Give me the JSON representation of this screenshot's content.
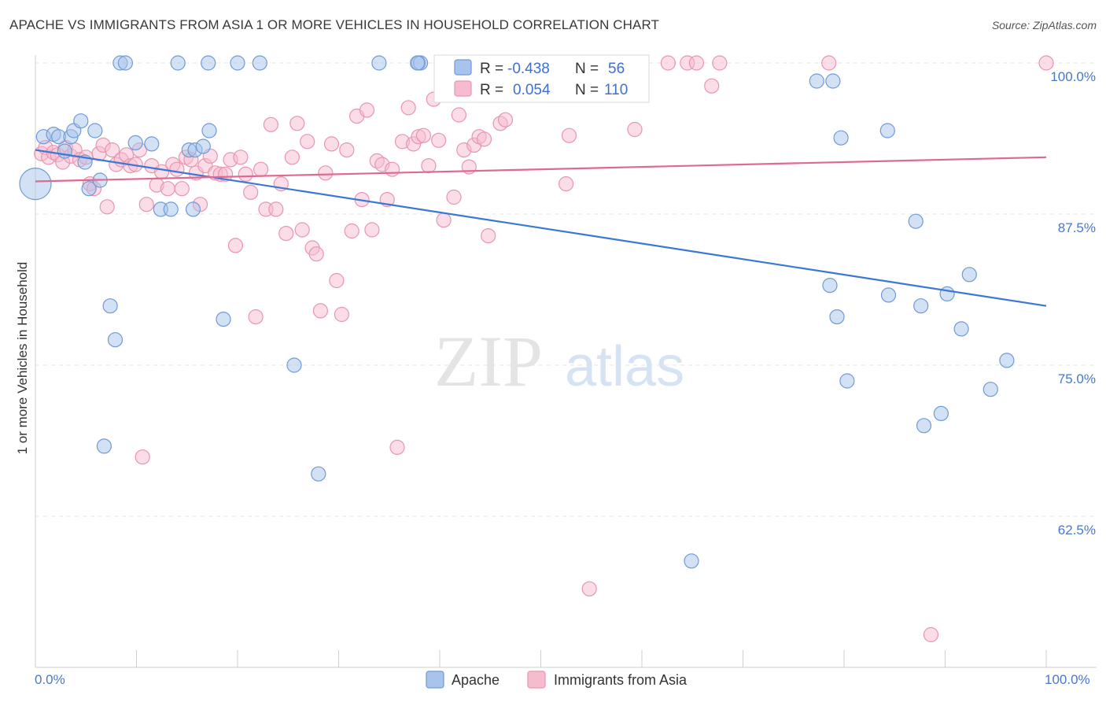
{
  "title": "APACHE VS IMMIGRANTS FROM ASIA 1 OR MORE VEHICLES IN HOUSEHOLD CORRELATION CHART",
  "source": "Source: ZipAtlas.com",
  "watermark": {
    "zip": "ZIP",
    "atlas": "atlas"
  },
  "legend": {
    "r_label": "R =",
    "n_label": "N =",
    "apache": {
      "r": "-0.438",
      "n": "56"
    },
    "asia": {
      "r": "0.054",
      "n": "110"
    }
  },
  "colors": {
    "apache_fill": "#a8c4ec",
    "apache_stroke": "#6f9ad8",
    "apache_line": "#3a78d4",
    "asia_fill": "#f6bccd",
    "asia_stroke": "#e895b0",
    "asia_line": "#e06994",
    "tick_text": "#4a78c8"
  },
  "chart_data": {
    "type": "scatter",
    "ylabel": "1 or more Vehicles in Household",
    "x_tick_labels": [
      "0.0%",
      "100.0%"
    ],
    "y_tick_labels": [
      "100.0%",
      "87.5%",
      "75.0%",
      "62.5%"
    ],
    "y_ticks": [
      100.0,
      87.5,
      75.0,
      62.5
    ],
    "xlim": [
      0,
      100
    ],
    "ylim": [
      50.0,
      101.2
    ],
    "grid": true,
    "series": [
      {
        "name": "Apache",
        "trend": [
          [
            0,
            92.8
          ],
          [
            100,
            79.9
          ]
        ],
        "points": [
          [
            0.0,
            90.0
          ],
          [
            0.8,
            93.9
          ],
          [
            1.8,
            94.1
          ],
          [
            2.3,
            93.9
          ],
          [
            3.5,
            93.9
          ],
          [
            2.9,
            92.7
          ],
          [
            3.8,
            94.4
          ],
          [
            4.5,
            95.2
          ],
          [
            4.9,
            91.8
          ],
          [
            5.3,
            89.6
          ],
          [
            5.9,
            94.4
          ],
          [
            6.4,
            90.3
          ],
          [
            7.4,
            79.9
          ],
          [
            7.9,
            77.1
          ],
          [
            6.8,
            68.3
          ],
          [
            8.4,
            100.0
          ],
          [
            8.9,
            100.0
          ],
          [
            9.9,
            93.4
          ],
          [
            11.5,
            93.3
          ],
          [
            12.4,
            87.9
          ],
          [
            13.4,
            87.9
          ],
          [
            14.1,
            100.0
          ],
          [
            15.2,
            92.8
          ],
          [
            15.6,
            87.9
          ],
          [
            15.8,
            92.8
          ],
          [
            16.6,
            93.1
          ],
          [
            17.2,
            94.4
          ],
          [
            17.1,
            100.0
          ],
          [
            18.6,
            78.8
          ],
          [
            20.0,
            100.0
          ],
          [
            22.2,
            100.0
          ],
          [
            25.6,
            75.0
          ],
          [
            28.0,
            66.0
          ],
          [
            34.0,
            100.0
          ],
          [
            37.9,
            100.0
          ],
          [
            38.1,
            100.0
          ],
          [
            37.8,
            100.0
          ],
          [
            42.5,
            100.0
          ],
          [
            64.9,
            58.8
          ],
          [
            77.3,
            98.5
          ],
          [
            78.6,
            81.6
          ],
          [
            78.9,
            98.5
          ],
          [
            79.3,
            79.0
          ],
          [
            79.7,
            93.8
          ],
          [
            80.3,
            73.7
          ],
          [
            84.3,
            94.4
          ],
          [
            84.4,
            80.8
          ],
          [
            87.1,
            86.9
          ],
          [
            87.6,
            79.9
          ],
          [
            87.9,
            70.0
          ],
          [
            89.6,
            71.0
          ],
          [
            90.2,
            80.9
          ],
          [
            91.6,
            78.0
          ],
          [
            92.4,
            82.5
          ],
          [
            94.5,
            73.0
          ],
          [
            96.1,
            75.4
          ]
        ]
      },
      {
        "name": "Immigrants from Asia",
        "trend": [
          [
            0,
            90.2
          ],
          [
            100,
            92.2
          ]
        ],
        "points": [
          [
            0.6,
            92.5
          ],
          [
            1.0,
            93.0
          ],
          [
            1.3,
            92.2
          ],
          [
            1.8,
            92.6
          ],
          [
            2.2,
            92.4
          ],
          [
            2.7,
            91.8
          ],
          [
            3.0,
            93.0
          ],
          [
            3.5,
            92.3
          ],
          [
            3.9,
            92.8
          ],
          [
            4.4,
            92.0
          ],
          [
            5.0,
            92.2
          ],
          [
            5.4,
            90.0
          ],
          [
            5.8,
            89.6
          ],
          [
            6.3,
            92.5
          ],
          [
            6.7,
            93.2
          ],
          [
            7.1,
            88.1
          ],
          [
            7.6,
            92.8
          ],
          [
            8.0,
            91.6
          ],
          [
            8.5,
            92.0
          ],
          [
            9.0,
            92.4
          ],
          [
            9.4,
            91.5
          ],
          [
            9.9,
            91.6
          ],
          [
            10.3,
            92.8
          ],
          [
            10.6,
            67.4
          ],
          [
            11.0,
            88.3
          ],
          [
            11.5,
            91.5
          ],
          [
            12.0,
            89.9
          ],
          [
            12.5,
            91.0
          ],
          [
            13.1,
            89.6
          ],
          [
            13.6,
            91.6
          ],
          [
            14.0,
            91.2
          ],
          [
            14.5,
            89.6
          ],
          [
            14.9,
            92.2
          ],
          [
            15.4,
            92.0
          ],
          [
            15.9,
            90.9
          ],
          [
            16.3,
            88.3
          ],
          [
            16.8,
            91.5
          ],
          [
            17.3,
            92.3
          ],
          [
            17.8,
            90.9
          ],
          [
            18.3,
            90.8
          ],
          [
            18.8,
            90.8
          ],
          [
            19.3,
            92.0
          ],
          [
            19.8,
            84.9
          ],
          [
            20.3,
            92.2
          ],
          [
            20.8,
            90.8
          ],
          [
            21.3,
            89.3
          ],
          [
            21.8,
            79.0
          ],
          [
            22.3,
            91.2
          ],
          [
            22.8,
            87.9
          ],
          [
            23.3,
            94.9
          ],
          [
            23.8,
            87.9
          ],
          [
            24.3,
            90.0
          ],
          [
            24.8,
            85.9
          ],
          [
            25.4,
            92.2
          ],
          [
            25.9,
            95.0
          ],
          [
            26.4,
            86.2
          ],
          [
            26.9,
            93.5
          ],
          [
            27.4,
            84.7
          ],
          [
            27.8,
            84.2
          ],
          [
            28.2,
            79.5
          ],
          [
            28.7,
            90.9
          ],
          [
            29.3,
            93.3
          ],
          [
            29.8,
            82.0
          ],
          [
            30.3,
            79.2
          ],
          [
            30.8,
            92.8
          ],
          [
            31.3,
            86.1
          ],
          [
            31.8,
            95.6
          ],
          [
            32.3,
            88.7
          ],
          [
            32.8,
            96.1
          ],
          [
            33.3,
            86.2
          ],
          [
            33.8,
            91.9
          ],
          [
            34.3,
            91.6
          ],
          [
            34.8,
            88.7
          ],
          [
            35.3,
            91.2
          ],
          [
            35.8,
            68.2
          ],
          [
            36.3,
            93.5
          ],
          [
            36.9,
            96.3
          ],
          [
            37.4,
            93.3
          ],
          [
            37.9,
            93.9
          ],
          [
            38.4,
            94.0
          ],
          [
            38.9,
            91.5
          ],
          [
            39.4,
            97.0
          ],
          [
            39.9,
            93.6
          ],
          [
            40.4,
            87.0
          ],
          [
            40.9,
            100.0
          ],
          [
            41.4,
            88.9
          ],
          [
            41.9,
            95.7
          ],
          [
            42.4,
            92.8
          ],
          [
            42.9,
            91.4
          ],
          [
            43.4,
            93.2
          ],
          [
            43.9,
            93.9
          ],
          [
            44.4,
            93.7
          ],
          [
            44.8,
            85.7
          ],
          [
            45.4,
            98.0
          ],
          [
            46.0,
            95.0
          ],
          [
            46.5,
            95.3
          ],
          [
            52.5,
            90.0
          ],
          [
            52.8,
            94.0
          ],
          [
            53.6,
            100.0
          ],
          [
            54.8,
            56.5
          ],
          [
            56.7,
            100.0
          ],
          [
            59.3,
            94.5
          ],
          [
            62.6,
            100.0
          ],
          [
            64.5,
            100.0
          ],
          [
            65.4,
            100.0
          ],
          [
            66.9,
            98.1
          ],
          [
            67.7,
            100.0
          ],
          [
            78.5,
            100.0
          ],
          [
            88.6,
            52.7
          ],
          [
            100.0,
            100.0
          ]
        ]
      }
    ]
  },
  "bottom_legend": [
    {
      "label": "Apache"
    },
    {
      "label": "Immigrants from Asia"
    }
  ]
}
